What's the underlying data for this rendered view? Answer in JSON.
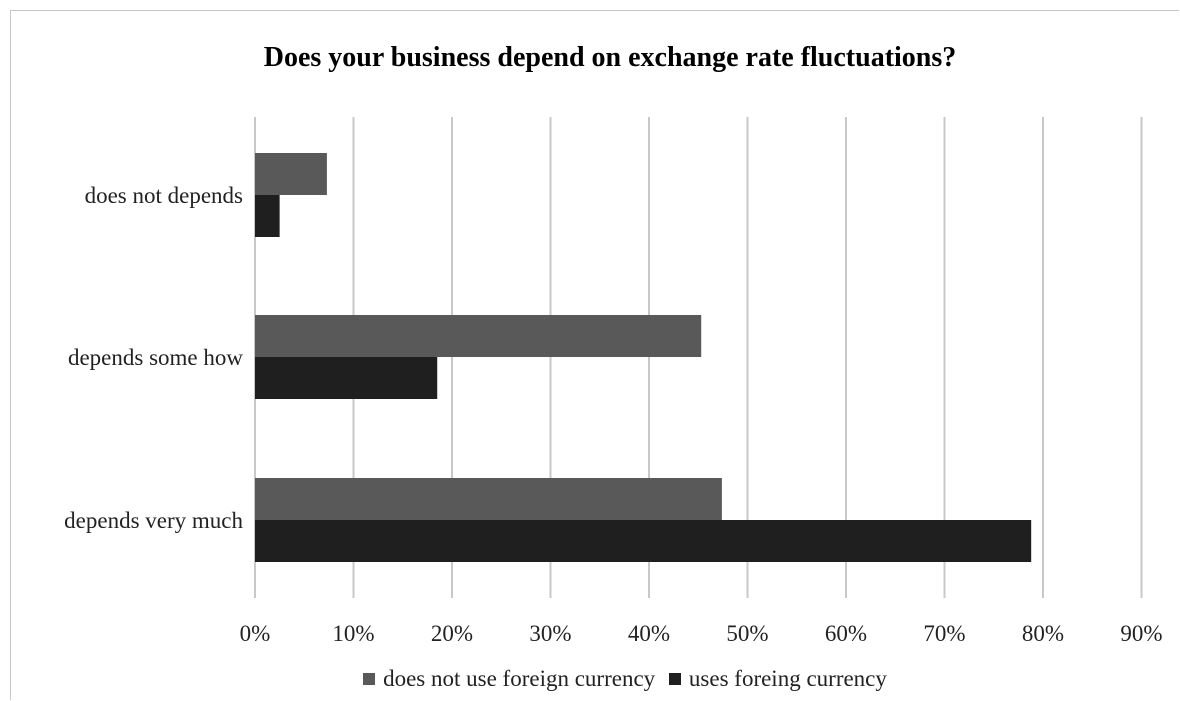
{
  "chart_data": {
    "type": "bar",
    "orientation": "horizontal",
    "title": "Does your business depend on exchange rate fluctuations?",
    "categories": [
      "does not depends",
      "depends some how",
      "depends very much"
    ],
    "series": [
      {
        "name": "does not use foreign currency",
        "values": [
          7.3,
          45.3,
          47.4
        ],
        "color": "#595959"
      },
      {
        "name": "uses foreing currency",
        "values": [
          2.5,
          18.5,
          78.8
        ],
        "color": "#1f1f1f"
      }
    ],
    "xlim": [
      0,
      90
    ],
    "xticks": [
      "0%",
      "10%",
      "20%",
      "30%",
      "40%",
      "50%",
      "60%",
      "70%",
      "80%",
      "90%"
    ],
    "grid": "vertical",
    "legend_position": "bottom"
  }
}
